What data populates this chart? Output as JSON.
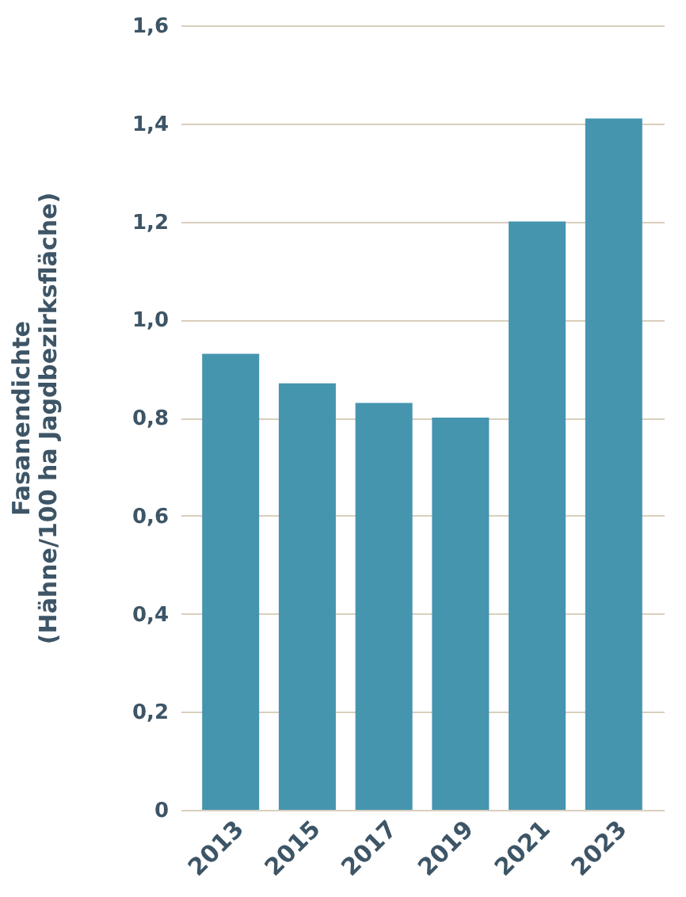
{
  "chart_data": {
    "type": "bar",
    "ylabel": "Fasanendichte\n(Hähne/100 ha Jagdbezirksfläche)",
    "categories": [
      "2013",
      "2015",
      "2017",
      "2019",
      "2021",
      "2023"
    ],
    "values": [
      0.93,
      0.87,
      0.83,
      0.8,
      1.2,
      1.41
    ],
    "color": "#4595af",
    "ylim": [
      0,
      1.6
    ],
    "yticks": [
      0,
      {
        "value": 0.2,
        "label": "0,2"
      },
      {
        "value": 0.4,
        "label": "0,4"
      },
      {
        "value": 0.6,
        "label": "0,6"
      },
      {
        "value": 0.8,
        "label": "0,8"
      },
      {
        "value": 1.0,
        "label": "1,0"
      },
      {
        "value": 1.2,
        "label": "1,2"
      },
      {
        "value": 1.4,
        "label": "1,4"
      },
      {
        "value": 1.6,
        "label": "1,6"
      }
    ],
    "grid": "y"
  }
}
